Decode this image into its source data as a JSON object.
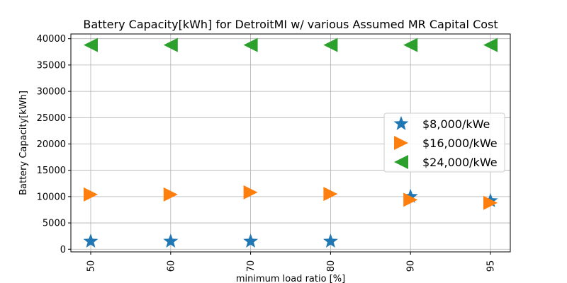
{
  "chart_data": {
    "type": "scatter",
    "title": "Battery Capacity[kWh] for DetroitMI w/ various Assumed MR Capital Cost",
    "xlabel": "minimum load ratio [%]",
    "ylabel": "Battery Capacity[kWh]",
    "categories": [
      "50",
      "60",
      "70",
      "80",
      "90",
      "95"
    ],
    "ylim": [
      -500,
      40900
    ],
    "yticks": [
      0,
      5000,
      10000,
      15000,
      20000,
      25000,
      30000,
      35000,
      40000
    ],
    "grid": true,
    "legend_position": "center-right",
    "series": [
      {
        "name": "$8,000/kWe",
        "marker": "star",
        "color": "#1f77b4",
        "values": [
          1500,
          1500,
          1500,
          1500,
          10000,
          9200
        ]
      },
      {
        "name": "$16,000/kWe",
        "marker": "triangle-right",
        "color": "#ff7f0e",
        "values": [
          10400,
          10400,
          10800,
          10500,
          9400,
          8800
        ]
      },
      {
        "name": "$24,000/kWe",
        "marker": "triangle-left",
        "color": "#2ca02c",
        "values": [
          38800,
          38800,
          38800,
          38800,
          38800,
          38800
        ]
      }
    ]
  }
}
